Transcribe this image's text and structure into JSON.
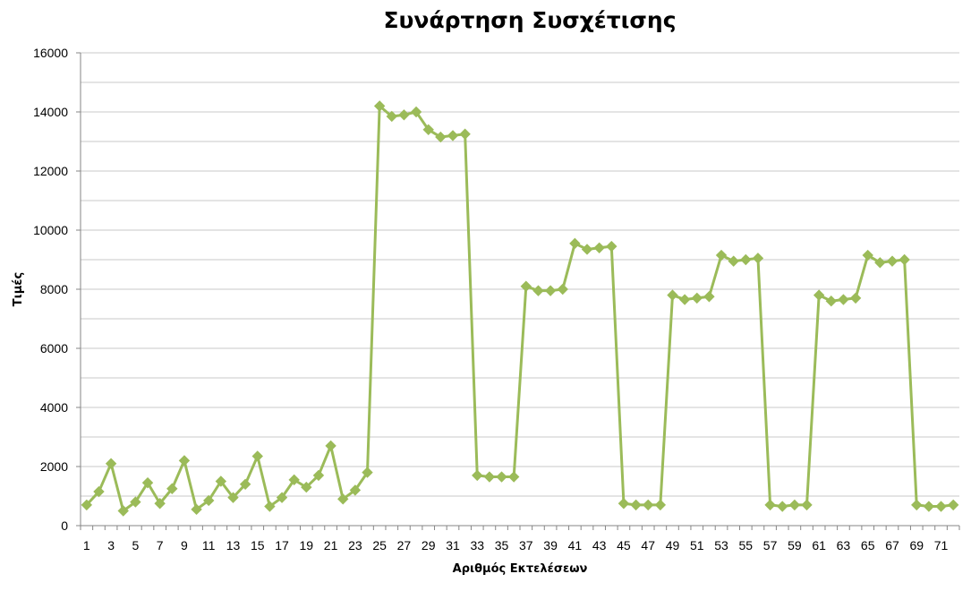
{
  "chart_data": {
    "type": "line",
    "title": "Συνάρτηση Συσχέτισης",
    "xlabel": "Αριθμός Εκτελέσεων",
    "ylabel": "Τιμές",
    "ylim": [
      0,
      16000
    ],
    "y_major_ticks": [
      0,
      2000,
      4000,
      6000,
      8000,
      10000,
      12000,
      14000,
      16000
    ],
    "y_minor_step": 1000,
    "grid": true,
    "legend": "none",
    "marker": "diamond",
    "color": "#9bbb59",
    "x": [
      1,
      2,
      3,
      4,
      5,
      6,
      7,
      8,
      9,
      10,
      11,
      12,
      13,
      14,
      15,
      16,
      17,
      18,
      19,
      20,
      21,
      22,
      23,
      24,
      25,
      26,
      27,
      28,
      29,
      30,
      31,
      32,
      33,
      34,
      35,
      36,
      37,
      38,
      39,
      40,
      41,
      42,
      43,
      44,
      45,
      46,
      47,
      48,
      49,
      50,
      51,
      52,
      53,
      54,
      55,
      56,
      57,
      58,
      59,
      60,
      61,
      62,
      63,
      64,
      65,
      66,
      67,
      68,
      69,
      70,
      71,
      72
    ],
    "x_tick_labels": [
      "1",
      "3",
      "5",
      "7",
      "9",
      "11",
      "13",
      "15",
      "17",
      "19",
      "21",
      "23",
      "25",
      "27",
      "29",
      "31",
      "33",
      "35",
      "37",
      "39",
      "41",
      "43",
      "45",
      "47",
      "49",
      "51",
      "53",
      "55",
      "57",
      "59",
      "61",
      "63",
      "65",
      "67",
      "69",
      "71"
    ],
    "values": [
      700,
      1150,
      2100,
      500,
      800,
      1450,
      750,
      1250,
      2200,
      550,
      850,
      1500,
      950,
      1400,
      2350,
      650,
      950,
      1550,
      1300,
      1700,
      2700,
      900,
      1200,
      1800,
      14200,
      13850,
      13900,
      14000,
      13400,
      13150,
      13200,
      13250,
      1700,
      1650,
      1650,
      1650,
      8100,
      7950,
      7950,
      8000,
      9550,
      9350,
      9400,
      9450,
      750,
      700,
      700,
      700,
      7800,
      7650,
      7700,
      7750,
      9150,
      8950,
      9000,
      9050,
      700,
      650,
      700,
      700,
      7800,
      7600,
      7650,
      7700,
      9150,
      8900,
      8950,
      9000,
      700,
      650,
      650,
      700
    ]
  }
}
